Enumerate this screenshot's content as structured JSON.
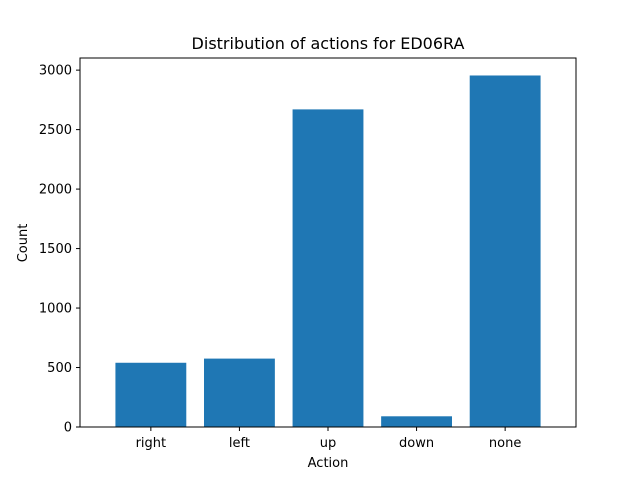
{
  "chart_data": {
    "type": "bar",
    "title": "Distribution of actions for ED06RA",
    "xlabel": "Action",
    "ylabel": "Count",
    "categories": [
      "right",
      "left",
      "up",
      "down",
      "none"
    ],
    "values": [
      540,
      575,
      2670,
      90,
      2955
    ],
    "ylim": [
      0,
      3102
    ],
    "yticks": [
      0,
      500,
      1000,
      1500,
      2000,
      2500,
      3000
    ],
    "grid": false,
    "bar_color": "#1f77b4"
  }
}
